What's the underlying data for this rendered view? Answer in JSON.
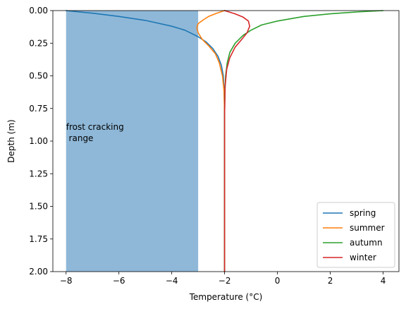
{
  "chart_data": {
    "type": "line",
    "xlabel": "Temperature (°C)",
    "ylabel": "Depth (m)",
    "xlim": [
      -8.5,
      4.6
    ],
    "ylim": [
      2.0,
      0.0
    ],
    "y_inverted": true,
    "grid": false,
    "legend_position": "bottom-right",
    "xticks": [
      -8,
      -6,
      -4,
      -2,
      0,
      2,
      4
    ],
    "xtick_labels": [
      "−8",
      "−6",
      "−4",
      "−2",
      "0",
      "2",
      "4"
    ],
    "yticks": [
      0.0,
      0.25,
      0.5,
      0.75,
      1.0,
      1.25,
      1.5,
      1.75,
      2.0
    ],
    "ytick_labels": [
      "0.00",
      "0.25",
      "0.50",
      "0.75",
      "1.00",
      "1.25",
      "1.50",
      "1.75",
      "2.00"
    ],
    "shaded_region": {
      "x_range": [
        -8,
        -3
      ],
      "color": "#8fb8d8",
      "label": "frost cracking\n range"
    },
    "series": [
      {
        "name": "spring",
        "color": "#1f77b4",
        "x": [
          -8.0,
          -7.0,
          -6.0,
          -5.0,
          -4.0,
          -3.5,
          -3.0,
          -2.7,
          -2.45,
          -2.25,
          -2.12,
          -2.05,
          -2.02,
          -2.0,
          -2.0
        ],
        "y": [
          0.0,
          0.02,
          0.045,
          0.075,
          0.12,
          0.15,
          0.2,
          0.24,
          0.29,
          0.35,
          0.42,
          0.5,
          0.6,
          0.8,
          2.0
        ]
      },
      {
        "name": "summer",
        "color": "#ff7f0e",
        "x": [
          -2.0,
          -2.3,
          -2.6,
          -2.8,
          -3.0,
          -3.05,
          -3.0,
          -2.85,
          -2.6,
          -2.35,
          -2.2,
          -2.08,
          -2.02,
          -2.0,
          -2.0
        ],
        "y": [
          0.0,
          0.02,
          0.045,
          0.07,
          0.1,
          0.13,
          0.17,
          0.22,
          0.27,
          0.33,
          0.4,
          0.5,
          0.62,
          0.8,
          2.0
        ]
      },
      {
        "name": "autumn",
        "color": "#2ca02c",
        "x": [
          4.0,
          3.0,
          2.0,
          1.0,
          0.0,
          -0.6,
          -1.0,
          -1.3,
          -1.6,
          -1.8,
          -1.9,
          -1.96,
          -1.99,
          -2.0,
          -2.0
        ],
        "y": [
          0.0,
          0.01,
          0.025,
          0.045,
          0.08,
          0.11,
          0.15,
          0.19,
          0.25,
          0.32,
          0.4,
          0.5,
          0.62,
          0.8,
          2.0
        ]
      },
      {
        "name": "winter",
        "color": "#d62728",
        "x": [
          -2.0,
          -1.6,
          -1.3,
          -1.1,
          -1.05,
          -1.15,
          -1.35,
          -1.6,
          -1.8,
          -1.92,
          -1.98,
          -2.0,
          -2.0
        ],
        "y": [
          0.0,
          0.025,
          0.05,
          0.08,
          0.12,
          0.17,
          0.22,
          0.28,
          0.36,
          0.45,
          0.58,
          0.8,
          2.0
        ]
      }
    ]
  }
}
